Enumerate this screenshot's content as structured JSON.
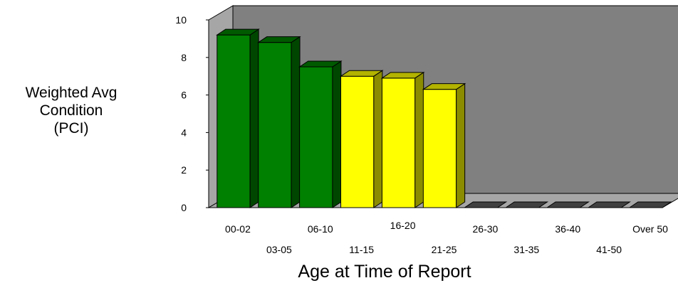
{
  "chart_data": {
    "type": "bar",
    "title": "",
    "ylabel_lines": [
      "Weighted Avg",
      "Condition",
      "(PCI)"
    ],
    "xlabel": "Age at Time of Report",
    "ylim": [
      0,
      10
    ],
    "yticks": [
      0,
      2,
      4,
      6,
      8,
      10
    ],
    "categories": [
      "00-02",
      "03-05",
      "06-10",
      "11-15",
      "16-20",
      "21-25",
      "26-30",
      "31-35",
      "36-40",
      "41-50",
      "Over 50"
    ],
    "values": [
      9.2,
      8.8,
      7.5,
      7.0,
      6.9,
      6.3,
      0,
      0,
      0,
      0,
      0
    ],
    "bar_colors": [
      "#008000",
      "#008000",
      "#008000",
      "#ffff00",
      "#ffff00",
      "#ffff00",
      "#404040",
      "#404040",
      "#404040",
      "#404040",
      "#404040"
    ],
    "grid": false,
    "legend": "none",
    "background": "#808080"
  }
}
